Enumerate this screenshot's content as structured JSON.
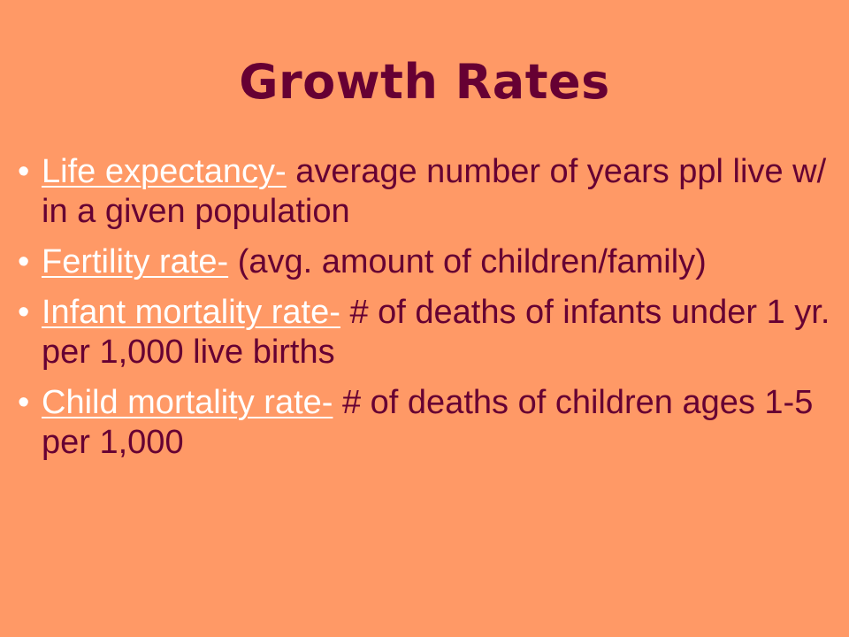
{
  "slide": {
    "title": "Growth Rates",
    "bullet_marker": "•",
    "bullets": [
      {
        "term": "Life expectancy-",
        "definition": " average number of years ppl live w/ in a given population"
      },
      {
        "term": "Fertility rate-",
        "definition": " (avg. amount of children/family)"
      },
      {
        "term": "Infant mortality rate-",
        "definition": " # of deaths of infants under 1 yr. per 1,000 live births"
      },
      {
        "term": "Child mortality rate-",
        "definition": " # of deaths of children ages 1-5 per 1,000"
      }
    ]
  },
  "colors": {
    "background": "#FF9966",
    "text": "#660033",
    "term": "#FFFFFF"
  }
}
